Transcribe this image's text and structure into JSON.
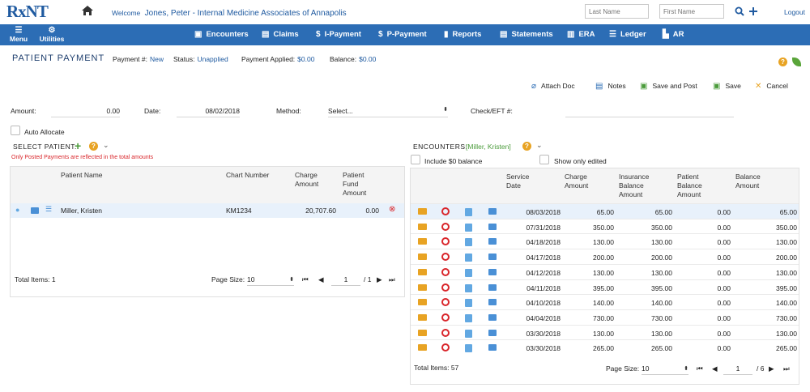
{
  "header": {
    "logo": "RxNT",
    "welcome_label": "Welcome",
    "welcome_user": "Jones, Peter - Internal Medicine Associates of Annapolis",
    "last_name_placeholder": "Last Name",
    "first_name_placeholder": "First Name",
    "logout": "Logout"
  },
  "nav": {
    "menu": "Menu",
    "utilities": "Utilities",
    "items": [
      "Encounters",
      "Claims",
      "I-Payment",
      "P-Payment",
      "Reports",
      "Statements",
      "ERA",
      "Ledger",
      "AR"
    ]
  },
  "page": {
    "title": "PATIENT PAYMENT",
    "payment_no_label": "Payment #:",
    "payment_no": "New",
    "status_label": "Status:",
    "status": "Unapplied",
    "applied_label": "Payment Applied:",
    "applied": "$0.00",
    "balance_label": "Balance:",
    "balance": "$0.00"
  },
  "actions": [
    "Attach Doc",
    "Notes",
    "Save and Post",
    "Save",
    "Cancel"
  ],
  "form": {
    "amount_label": "Amount:",
    "amount": "0.00",
    "date_label": "Date:",
    "date": "08/02/2018",
    "method_label": "Method:",
    "method": "Select...",
    "check_label": "Check/EFT #:",
    "auto_allocate": "Auto Allocate"
  },
  "select_patient": {
    "title": "SELECT PATIENT:",
    "note": "Only Posted Payments are reflected in the total amounts",
    "columns": [
      "Patient Name",
      "Chart Number",
      "Charge Amount",
      "Patient Fund Amount"
    ],
    "row": {
      "name": "Miller, Kristen",
      "chart": "KM1234",
      "charge": "20,707.60",
      "fund": "0.00"
    },
    "total_items": "Total Items: 1",
    "page_size_label": "Page Size:",
    "page_size": "10",
    "page": "1",
    "page_of": "/ 1"
  },
  "encounters": {
    "title": "ENCOUNTERS:",
    "patient": "[Miller, Kristen]",
    "include_zero": "Include $0 balance",
    "show_edited": "Show only edited",
    "columns": [
      "Service Date",
      "Charge Amount",
      "Insurance Balance Amount",
      "Patient Balance Amount",
      "Balance Amount"
    ],
    "rows": [
      [
        "08/03/2018",
        "65.00",
        "65.00",
        "0.00",
        "65.00"
      ],
      [
        "07/31/2018",
        "350.00",
        "350.00",
        "0.00",
        "350.00"
      ],
      [
        "04/18/2018",
        "130.00",
        "130.00",
        "0.00",
        "130.00"
      ],
      [
        "04/17/2018",
        "200.00",
        "200.00",
        "0.00",
        "200.00"
      ],
      [
        "04/12/2018",
        "130.00",
        "130.00",
        "0.00",
        "130.00"
      ],
      [
        "04/11/2018",
        "395.00",
        "395.00",
        "0.00",
        "395.00"
      ],
      [
        "04/10/2018",
        "140.00",
        "140.00",
        "0.00",
        "140.00"
      ],
      [
        "04/04/2018",
        "730.00",
        "730.00",
        "0.00",
        "730.00"
      ],
      [
        "03/30/2018",
        "130.00",
        "130.00",
        "0.00",
        "130.00"
      ],
      [
        "03/30/2018",
        "265.00",
        "265.00",
        "0.00",
        "265.00"
      ]
    ],
    "total_items": "Total Items: 57",
    "page_size_label": "Page Size:",
    "page_size": "10",
    "page": "1",
    "page_of": "/ 6"
  },
  "colors": {
    "nav": "#2c6db5",
    "accent": "#1f5aa0",
    "error": "#d9262b",
    "help": "#e8a323"
  }
}
